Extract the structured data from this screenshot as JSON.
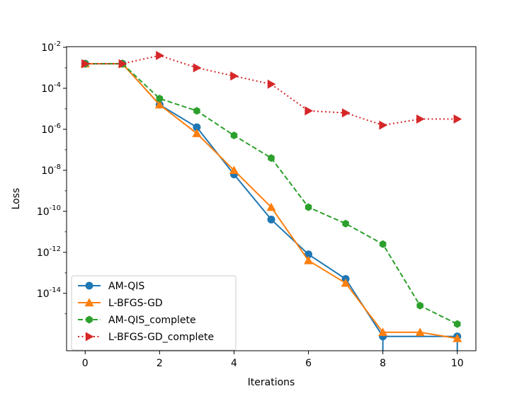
{
  "chart_data": {
    "type": "line",
    "title": "",
    "xlabel": "Iterations",
    "ylabel": "Loss",
    "yscale": "log",
    "xlim": [
      -0.5,
      10.5
    ],
    "ylim_exp": [
      -16.8,
      -1.97
    ],
    "xticks": [
      0,
      2,
      4,
      6,
      8,
      10
    ],
    "yticks": [
      {
        "exp": -2,
        "base": "10",
        "power": "-2"
      },
      {
        "exp": -4,
        "base": "10",
        "power": "-4"
      },
      {
        "exp": -6,
        "base": "10",
        "power": "-6"
      },
      {
        "exp": -8,
        "base": "10",
        "power": "-8"
      },
      {
        "exp": -10,
        "base": "10",
        "power": "-10"
      },
      {
        "exp": -12,
        "base": "10",
        "power": "-12"
      },
      {
        "exp": -14,
        "base": "10",
        "power": "-14"
      }
    ],
    "legend_position": "lower-left",
    "series": [
      {
        "name": "AM-QIS",
        "color": "#1f77b4",
        "linestyle": "solid",
        "marker": "circle",
        "x": [
          0,
          1,
          2,
          3,
          4,
          5,
          6,
          7,
          8,
          10
        ],
        "log10_y": [
          -2.8,
          -2.8,
          -4.8,
          -5.9,
          -8.2,
          -10.4,
          -12.1,
          -13.3,
          -16.1,
          -16.1
        ],
        "clipped_below": [
          false,
          false,
          false,
          false,
          false,
          false,
          false,
          false,
          true,
          true
        ]
      },
      {
        "name": "L-BFGS-GD",
        "color": "#ff7f0e",
        "linestyle": "solid",
        "marker": "triangle-up",
        "x": [
          0,
          1,
          2,
          3,
          4,
          5,
          6,
          7,
          8,
          9,
          10
        ],
        "log10_y": [
          -2.8,
          -2.8,
          -4.8,
          -6.2,
          -8.0,
          -9.8,
          -12.4,
          -13.5,
          -15.9,
          -15.9,
          -16.2
        ],
        "clipped_below": [
          false,
          false,
          false,
          false,
          false,
          false,
          false,
          false,
          false,
          false,
          false
        ]
      },
      {
        "name": "AM-QIS_complete",
        "color": "#2ca02c",
        "linestyle": "dashed",
        "marker": "hexagon",
        "x": [
          0,
          1,
          2,
          3,
          4,
          5,
          6,
          7,
          8,
          9,
          10
        ],
        "log10_y": [
          -2.8,
          -2.8,
          -4.5,
          -5.1,
          -6.3,
          -7.4,
          -9.8,
          -10.6,
          -11.6,
          -14.6,
          -15.5
        ],
        "clipped_below": [
          false,
          false,
          false,
          false,
          false,
          false,
          false,
          false,
          false,
          false,
          false
        ]
      },
      {
        "name": "L-BFGS-GD_complete",
        "color": "#d62728",
        "linestyle": "dotted",
        "marker": "triangle-right",
        "x": [
          0,
          1,
          2,
          3,
          4,
          5,
          6,
          7,
          8,
          9,
          10
        ],
        "log10_y": [
          -2.8,
          -2.8,
          -2.4,
          -3.0,
          -3.4,
          -3.8,
          -5.1,
          -5.2,
          -5.8,
          -5.5,
          -5.5
        ],
        "clipped_below": [
          false,
          false,
          false,
          false,
          false,
          false,
          false,
          false,
          false,
          false,
          false
        ]
      }
    ]
  }
}
